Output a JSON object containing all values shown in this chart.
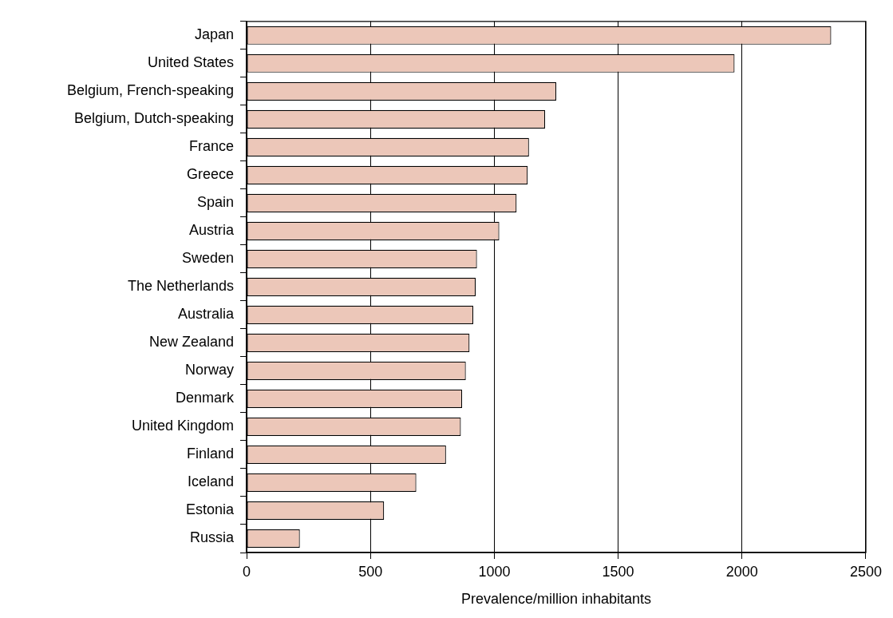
{
  "chart_data": {
    "type": "bar",
    "orientation": "horizontal",
    "xlabel": "Prevalence/million inhabitants",
    "categories": [
      "Japan",
      "United States",
      "Belgium, French-speaking",
      "Belgium, Dutch-speaking",
      "France",
      "Greece",
      "Spain",
      "Austria",
      "Sweden",
      "The Netherlands",
      "Australia",
      "New Zealand",
      "Norway",
      "Denmark",
      "United Kingdom",
      "Finland",
      "Iceland",
      "Estonia",
      "Russia"
    ],
    "values": [
      2360,
      1970,
      1250,
      1205,
      1140,
      1135,
      1090,
      1020,
      930,
      925,
      915,
      900,
      885,
      870,
      865,
      805,
      685,
      555,
      215
    ],
    "color": "#ecc7b9",
    "xlim": [
      0,
      2500
    ],
    "xticks": [
      0,
      500,
      1000,
      1500,
      2000,
      2500
    ],
    "grid": "x",
    "legend": false
  }
}
